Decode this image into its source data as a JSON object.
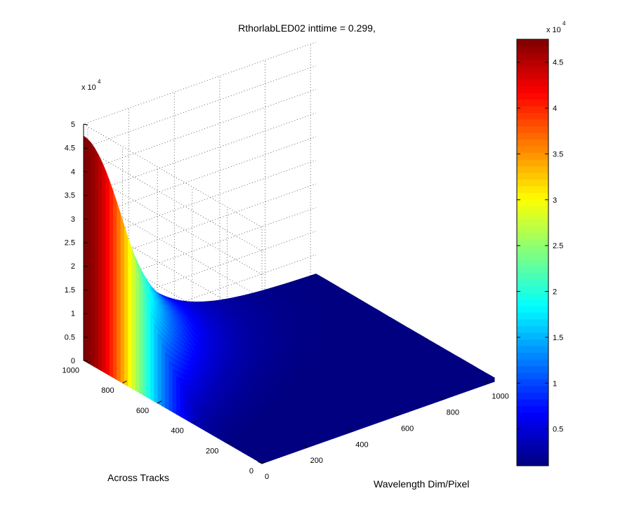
{
  "chart_data": {
    "type": "surface",
    "title": "RthorlabLED02 inttime = 0.299,",
    "x_axis": {
      "label": "Wavelength Dim/Pixel",
      "range": [
        0,
        1024
      ],
      "ticks": [
        0,
        200,
        400,
        600,
        800,
        1000
      ]
    },
    "y_axis": {
      "label": "Across Tracks",
      "range": [
        0,
        1024
      ],
      "ticks": [
        0,
        200,
        400,
        600,
        800,
        1000
      ]
    },
    "z_axis": {
      "label": "",
      "range": [
        0,
        50000
      ],
      "ticks": [
        0,
        5000,
        10000,
        15000,
        20000,
        25000,
        30000,
        35000,
        40000,
        45000,
        50000
      ],
      "tick_labels": [
        "0",
        "0.5",
        "1",
        "1.5",
        "2",
        "2.5",
        "3",
        "3.5",
        "4",
        "4.5",
        "5"
      ],
      "exponent_label": "x 10",
      "exponent": "4"
    },
    "colorbar": {
      "colormap": "jet",
      "range": [
        1000,
        47500
      ],
      "ticks": [
        5000,
        10000,
        15000,
        20000,
        25000,
        30000,
        35000,
        40000,
        45000
      ],
      "tick_labels": [
        "0.5",
        "1",
        "1.5",
        "2",
        "2.5",
        "3",
        "3.5",
        "4",
        "4.5"
      ],
      "exponent_label": "x 10",
      "exponent": "4"
    },
    "grid": true,
    "surface": {
      "peak_value": 47500,
      "peak_wavelength_pixel": 0,
      "peak_across_track": 1024,
      "wavelength_decay_px": 185,
      "across_track_profile": "gaussian",
      "across_track_center": 1024,
      "across_track_sigma": 390,
      "background_value": 800,
      "across_track_extent": [
        0,
        1024
      ],
      "wavelength_extent": [
        0,
        1024
      ]
    }
  }
}
